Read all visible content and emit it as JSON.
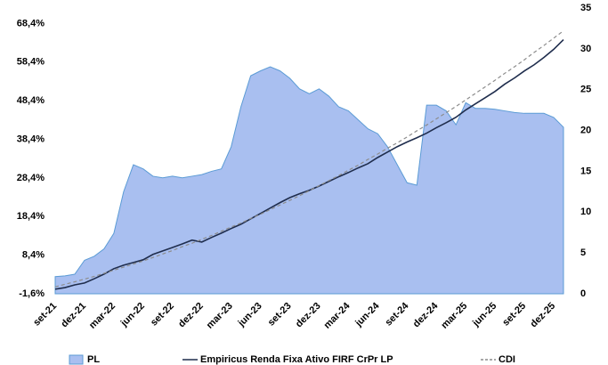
{
  "chart_data": {
    "type": "combo",
    "categories": [
      "set-21",
      null,
      null,
      "dez-21",
      null,
      null,
      "mar-22",
      null,
      null,
      "jun-22",
      null,
      null,
      "set-22",
      null,
      null,
      "dez-22",
      null,
      null,
      "mar-23",
      null,
      null,
      "jun-23",
      null,
      null,
      "set-23",
      null,
      null,
      "dez-23",
      null,
      null,
      "mar-24",
      null,
      null,
      "jun-24",
      null,
      null,
      "set-24",
      null,
      null,
      "dez-24",
      null,
      null,
      "mar-25",
      null,
      null,
      "jun-25",
      null,
      null,
      "set-25",
      null,
      null,
      "dez-25",
      null
    ],
    "series": [
      {
        "name": "PL",
        "kind": "area",
        "axis": "y2",
        "color": "#a9bff0",
        "values": [
          2.1,
          2.2,
          2.4,
          4.1,
          4.6,
          5.5,
          7.4,
          12.5,
          15.8,
          15.3,
          14.4,
          14.2,
          14.4,
          14.2,
          14.4,
          14.6,
          15.0,
          15.3,
          18.0,
          22.9,
          26.7,
          27.3,
          27.8,
          27.3,
          26.4,
          25.1,
          24.5,
          25.1,
          24.2,
          22.9,
          22.4,
          21.3,
          20.2,
          19.6,
          18.0,
          15.8,
          13.6,
          13.3,
          23.1,
          23.1,
          22.4,
          20.7,
          23.4,
          22.7,
          22.7,
          22.6,
          22.4,
          22.2,
          22.1,
          22.1,
          22.1,
          21.6,
          20.4
        ]
      },
      {
        "name": "Empiricus Renda Fixa Ativo FIRF CrPr LP",
        "kind": "line",
        "style": "solid",
        "color": "#1f2d4d",
        "values": [
          -0.4,
          0.0,
          0.7,
          1.2,
          2.3,
          3.5,
          4.9,
          5.8,
          6.5,
          7.2,
          8.6,
          9.5,
          10.4,
          11.3,
          12.3,
          11.8,
          13.0,
          14.1,
          15.3,
          16.4,
          17.8,
          19.2,
          20.6,
          22.0,
          23.3,
          24.3,
          25.2,
          26.3,
          27.5,
          28.7,
          29.8,
          31.0,
          32.1,
          33.7,
          35.1,
          36.5,
          37.7,
          38.8,
          40.0,
          41.4,
          42.7,
          44.1,
          46.0,
          47.6,
          49.2,
          50.8,
          52.7,
          54.3,
          56.1,
          57.7,
          59.6,
          61.7,
          64.2
        ]
      },
      {
        "name": "CDI",
        "kind": "line",
        "style": "dashed",
        "color": "#8c8c8c",
        "values": [
          0.2,
          0.85,
          1.5,
          2.2,
          2.9,
          3.7,
          4.5,
          5.3,
          6.1,
          6.9,
          7.8,
          8.7,
          9.6,
          10.6,
          11.5,
          12.5,
          13.5,
          14.6,
          15.7,
          16.7,
          17.9,
          19.0,
          20.2,
          21.4,
          22.6,
          23.8,
          25.1,
          26.4,
          27.7,
          29.0,
          30.4,
          31.7,
          33.2,
          34.6,
          36.1,
          37.5,
          39.0,
          40.6,
          42.1,
          43.7,
          45.3,
          46.9,
          48.6,
          50.3,
          52.0,
          53.7,
          55.5,
          57.2,
          59.0,
          60.9,
          62.7,
          64.6,
          66.5
        ]
      }
    ],
    "ylim": [
      -1.6,
      72.4
    ],
    "yticks": [
      {
        "value": -1.6,
        "label": "-1,6%"
      },
      {
        "value": 8.4,
        "label": "8,4%"
      },
      {
        "value": 18.4,
        "label": "18,4%"
      },
      {
        "value": 28.4,
        "label": "28,4%"
      },
      {
        "value": 38.4,
        "label": "38,4%"
      },
      {
        "value": 48.4,
        "label": "48,4%"
      },
      {
        "value": 58.4,
        "label": "58,4%"
      },
      {
        "value": 68.4,
        "label": "68,4%"
      }
    ],
    "y2lim": [
      0,
      35
    ],
    "y2ticks": [
      0,
      5,
      10,
      15,
      20,
      25,
      30,
      35
    ]
  }
}
